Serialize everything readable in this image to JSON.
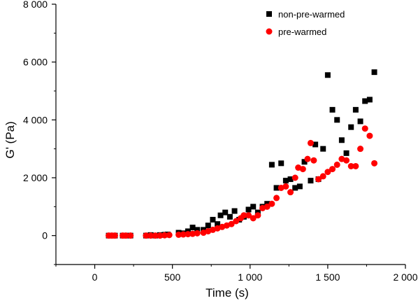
{
  "chart_data": {
    "type": "scatter",
    "xlabel": "Time (s)",
    "ylabel": "G' (Pa)",
    "xlim": [
      -250,
      2000
    ],
    "ylim": [
      -1000,
      8000
    ],
    "x_ticks": [
      0,
      500,
      1000,
      1500,
      2000
    ],
    "x_tick_labels": [
      "0",
      "500",
      "1 000",
      "1 500",
      "2 000"
    ],
    "y_ticks": [
      0,
      2000,
      4000,
      6000,
      8000
    ],
    "y_tick_labels": [
      "0",
      "2 000",
      "4 000",
      "6 000",
      "8 000"
    ],
    "grid": false,
    "legend_position": "top-right",
    "series": [
      {
        "name": "non-pre-warmed",
        "marker": "square",
        "color": "#000000",
        "points": [
          [
            90,
            0
          ],
          [
            110,
            0
          ],
          [
            130,
            0
          ],
          [
            180,
            0
          ],
          [
            200,
            0
          ],
          [
            230,
            0
          ],
          [
            330,
            0
          ],
          [
            360,
            20
          ],
          [
            390,
            0
          ],
          [
            420,
            20
          ],
          [
            450,
            30
          ],
          [
            470,
            40
          ],
          [
            540,
            100
          ],
          [
            570,
            80
          ],
          [
            600,
            150
          ],
          [
            630,
            280
          ],
          [
            660,
            200
          ],
          [
            700,
            200
          ],
          [
            730,
            350
          ],
          [
            760,
            550
          ],
          [
            790,
            400
          ],
          [
            810,
            700
          ],
          [
            840,
            800
          ],
          [
            870,
            650
          ],
          [
            900,
            850
          ],
          [
            930,
            550
          ],
          [
            960,
            650
          ],
          [
            990,
            900
          ],
          [
            1020,
            1000
          ],
          [
            1050,
            800
          ],
          [
            1080,
            1000
          ],
          [
            1110,
            1100
          ],
          [
            1140,
            2450
          ],
          [
            1170,
            1650
          ],
          [
            1200,
            2500
          ],
          [
            1230,
            1900
          ],
          [
            1260,
            1950
          ],
          [
            1290,
            1650
          ],
          [
            1320,
            1700
          ],
          [
            1350,
            2550
          ],
          [
            1390,
            1900
          ],
          [
            1420,
            3150
          ],
          [
            1440,
            1950
          ],
          [
            1470,
            3000
          ],
          [
            1500,
            5550
          ],
          [
            1530,
            4350
          ],
          [
            1560,
            4000
          ],
          [
            1590,
            3300
          ],
          [
            1620,
            2850
          ],
          [
            1650,
            3750
          ],
          [
            1680,
            4350
          ],
          [
            1710,
            3950
          ],
          [
            1740,
            4650
          ],
          [
            1770,
            4700
          ],
          [
            1800,
            5650
          ]
        ]
      },
      {
        "name": "pre-warmed",
        "marker": "circle",
        "color": "#ff0000",
        "points": [
          [
            90,
            0
          ],
          [
            110,
            0
          ],
          [
            130,
            0
          ],
          [
            180,
            0
          ],
          [
            200,
            0
          ],
          [
            230,
            0
          ],
          [
            330,
            0
          ],
          [
            360,
            0
          ],
          [
            390,
            0
          ],
          [
            420,
            0
          ],
          [
            450,
            10
          ],
          [
            480,
            20
          ],
          [
            540,
            30
          ],
          [
            570,
            40
          ],
          [
            600,
            50
          ],
          [
            630,
            60
          ],
          [
            660,
            80
          ],
          [
            700,
            100
          ],
          [
            730,
            150
          ],
          [
            760,
            200
          ],
          [
            790,
            250
          ],
          [
            820,
            300
          ],
          [
            850,
            350
          ],
          [
            880,
            400
          ],
          [
            910,
            500
          ],
          [
            940,
            600
          ],
          [
            960,
            700
          ],
          [
            990,
            700
          ],
          [
            1020,
            600
          ],
          [
            1050,
            700
          ],
          [
            1080,
            950
          ],
          [
            1110,
            1000
          ],
          [
            1140,
            1100
          ],
          [
            1170,
            1300
          ],
          [
            1200,
            1650
          ],
          [
            1230,
            1700
          ],
          [
            1260,
            1500
          ],
          [
            1290,
            2000
          ],
          [
            1310,
            2350
          ],
          [
            1340,
            2300
          ],
          [
            1370,
            2650
          ],
          [
            1390,
            3200
          ],
          [
            1410,
            2600
          ],
          [
            1440,
            1950
          ],
          [
            1470,
            2050
          ],
          [
            1500,
            2200
          ],
          [
            1530,
            2300
          ],
          [
            1560,
            2450
          ],
          [
            1590,
            2650
          ],
          [
            1620,
            2600
          ],
          [
            1650,
            2400
          ],
          [
            1680,
            2400
          ],
          [
            1710,
            3000
          ],
          [
            1740,
            3700
          ],
          [
            1770,
            3450
          ],
          [
            1800,
            2500
          ]
        ]
      }
    ]
  }
}
